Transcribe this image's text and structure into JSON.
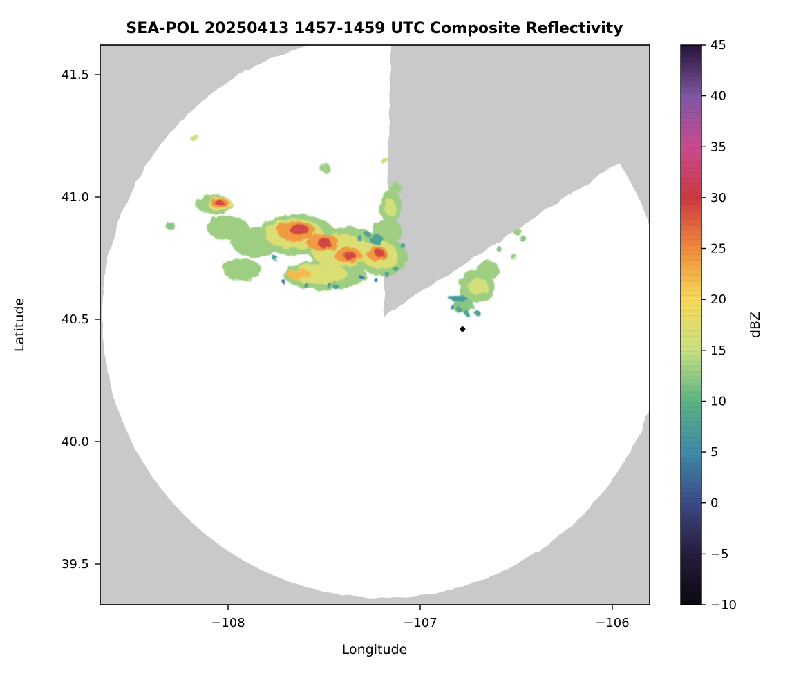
{
  "title": "SEA-POL 20250413 1457-1459 UTC Composite Reflectivity",
  "axes": {
    "xlabel": "Longitude",
    "ylabel": "Latitude",
    "xticks": [
      "−108",
      "−107",
      "−106"
    ],
    "yticks": [
      "41.5",
      "41.0",
      "40.5",
      "40.0",
      "39.5"
    ]
  },
  "colorbar": {
    "label": "dBZ",
    "ticks": [
      "45",
      "40",
      "35",
      "30",
      "25",
      "20",
      "15",
      "10",
      "5",
      "0",
      "−5",
      "−10"
    ]
  },
  "colors": {
    "outside_scan": "#c9c9c9",
    "scan_area": "#ffffff",
    "frame": "#000000",
    "marker": "#000000"
  },
  "chart_data": {
    "type": "heatmap",
    "title": "SEA-POL 20250413 1457-1459 UTC Composite Reflectivity",
    "xlabel": "Longitude",
    "ylabel": "Latitude",
    "xlim": [
      -108.66,
      -105.81
    ],
    "ylim": [
      39.33,
      41.62
    ],
    "xticks": [
      -108,
      -107,
      -106
    ],
    "yticks": [
      39.5,
      40.0,
      40.5,
      41.0,
      41.5
    ],
    "radar": {
      "name": "SEA-POL",
      "center_lon": -107.19,
      "center_lat": 40.5,
      "range_deg": 1.15,
      "blocked_sector_azimuth_deg": [
        2,
        57
      ]
    },
    "marker": {
      "shape": "diamond",
      "lon": -106.78,
      "lat": 40.46,
      "color": "#000000"
    },
    "colorbar": {
      "label": "dBZ",
      "min": -10,
      "max": 45,
      "tick_step": 5,
      "cmap_stops": [
        [
          -10,
          "#0b0710"
        ],
        [
          -5,
          "#271c3c"
        ],
        [
          0,
          "#3c4a85"
        ],
        [
          5,
          "#3e8aa9"
        ],
        [
          10,
          "#5cb483"
        ],
        [
          15,
          "#c8e082"
        ],
        [
          20,
          "#f8da59"
        ],
        [
          25,
          "#f08a3c"
        ],
        [
          30,
          "#cb3a41"
        ],
        [
          35,
          "#cb4a8f"
        ],
        [
          40,
          "#7e57a5"
        ],
        [
          45,
          "#261336"
        ]
      ]
    },
    "echo_format": [
      "lon",
      "lat",
      "rx_deg",
      "ry_deg",
      "dbz"
    ],
    "echoes": [
      [
        -108.0,
        40.873,
        0.108,
        0.051,
        13
      ],
      [
        -107.856,
        40.816,
        0.126,
        0.062,
        13
      ],
      [
        -107.64,
        40.845,
        0.198,
        0.085,
        13
      ],
      [
        -107.388,
        40.788,
        0.198,
        0.09,
        13
      ],
      [
        -107.191,
        40.754,
        0.126,
        0.079,
        13
      ],
      [
        -107.496,
        40.681,
        0.216,
        0.062,
        13
      ],
      [
        -107.928,
        40.703,
        0.101,
        0.045,
        13
      ],
      [
        -107.155,
        40.958,
        0.058,
        0.068,
        13
      ],
      [
        -107.173,
        40.859,
        0.079,
        0.051,
        13
      ],
      [
        -108.072,
        40.969,
        0.094,
        0.04,
        13
      ],
      [
        -108.299,
        40.881,
        0.025,
        0.017,
        12
      ],
      [
        -108.173,
        41.24,
        0.022,
        0.014,
        16
      ],
      [
        -107.496,
        41.119,
        0.029,
        0.017,
        13
      ],
      [
        -107.187,
        41.15,
        0.022,
        0.014,
        16
      ],
      [
        -107.129,
        41.037,
        0.029,
        0.02,
        13
      ],
      [
        -106.705,
        40.633,
        0.094,
        0.068,
        13
      ],
      [
        -106.647,
        40.703,
        0.058,
        0.037,
        13
      ],
      [
        -106.777,
        40.556,
        0.058,
        0.031,
        12
      ],
      [
        -106.49,
        40.855,
        0.022,
        0.014,
        13
      ],
      [
        -106.464,
        40.828,
        0.018,
        0.011,
        12
      ],
      [
        -106.511,
        40.754,
        0.018,
        0.011,
        13
      ],
      [
        -106.59,
        40.788,
        0.014,
        0.011,
        12
      ],
      [
        -108.043,
        40.972,
        0.065,
        0.028,
        17
      ],
      [
        -107.658,
        40.85,
        0.151,
        0.062,
        17
      ],
      [
        -107.417,
        40.782,
        0.151,
        0.068,
        17
      ],
      [
        -107.212,
        40.763,
        0.094,
        0.056,
        17
      ],
      [
        -107.525,
        40.686,
        0.144,
        0.042,
        17
      ],
      [
        -106.698,
        40.636,
        0.054,
        0.034,
        16
      ],
      [
        -107.155,
        40.958,
        0.029,
        0.034,
        16
      ],
      [
        -108.043,
        40.975,
        0.047,
        0.02,
        24
      ],
      [
        -107.647,
        40.862,
        0.101,
        0.04,
        24
      ],
      [
        -107.507,
        40.814,
        0.083,
        0.034,
        24
      ],
      [
        -107.378,
        40.763,
        0.072,
        0.031,
        24
      ],
      [
        -107.223,
        40.768,
        0.054,
        0.031,
        24
      ],
      [
        -107.633,
        40.686,
        0.065,
        0.02,
        22
      ],
      [
        -108.047,
        40.977,
        0.025,
        0.011,
        29
      ],
      [
        -107.629,
        40.867,
        0.05,
        0.023,
        29
      ],
      [
        -107.496,
        40.811,
        0.036,
        0.02,
        29
      ],
      [
        -107.367,
        40.76,
        0.032,
        0.017,
        29
      ],
      [
        -107.212,
        40.771,
        0.025,
        0.017,
        29
      ],
      [
        -107.619,
        40.873,
        0.011,
        0.008,
        32
      ],
      [
        -107.5,
        40.816,
        0.011,
        0.008,
        32
      ],
      [
        -107.363,
        40.763,
        0.011,
        0.008,
        32
      ],
      [
        -107.317,
        40.833,
        0.014,
        0.011,
        8
      ],
      [
        -107.273,
        40.847,
        0.014,
        0.011,
        8
      ],
      [
        -107.173,
        40.686,
        0.014,
        0.011,
        8
      ],
      [
        -107.126,
        40.706,
        0.014,
        0.011,
        8
      ],
      [
        -107.475,
        40.641,
        0.014,
        0.011,
        8
      ],
      [
        -107.435,
        40.63,
        0.014,
        0.011,
        8
      ],
      [
        -107.594,
        40.638,
        0.014,
        0.011,
        8
      ],
      [
        -107.09,
        40.799,
        0.014,
        0.011,
        8
      ],
      [
        -107.755,
        40.749,
        0.014,
        0.011,
        8
      ],
      [
        -106.795,
        40.537,
        0.014,
        0.011,
        8
      ],
      [
        -106.755,
        40.523,
        0.014,
        0.011,
        8
      ],
      [
        -106.705,
        40.528,
        0.014,
        0.011,
        8
      ],
      [
        -107.227,
        40.825,
        0.036,
        0.02,
        8
      ],
      [
        -106.802,
        40.585,
        0.05,
        0.011,
        7
      ],
      [
        -107.306,
        40.672,
        0.011,
        0.008,
        4
      ],
      [
        -107.227,
        40.658,
        0.011,
        0.008,
        4
      ],
      [
        -107.705,
        40.65,
        0.011,
        0.008,
        4
      ],
      [
        -106.835,
        40.551,
        0.011,
        0.008,
        4
      ]
    ],
    "description": "Radar composite reflectivity: main convective band 40.6-41.1N / 108.35-107.05W with 25-32 dBZ cores, secondary cells 40.5-40.9N / 106.85-106.45W, gray blocked sector azimuth ~2-57 degrees, black diamond site marker."
  }
}
